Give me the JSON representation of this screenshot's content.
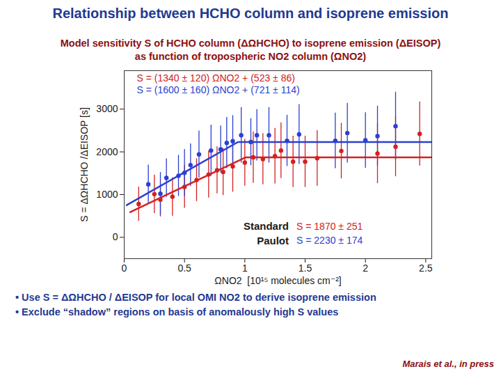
{
  "chart_data": {
    "type": "scatter",
    "title": "Relationship between HCHO column and isoprene emission",
    "subtitle": [
      "Model sensitivity S of HCHO column (ΔΩHCHO) to isoprene emission (ΔEISOP)",
      "as function of tropospheric NO2 column (ΩNO2)"
    ],
    "x_label": "ΩNO2  [10¹⁵ molecules cm⁻²]",
    "y_label": "S = ΔΩHCHO /ΔEISOP [s]",
    "xlim": [
      0,
      2.55
    ],
    "ylim": [
      -500,
      3900
    ],
    "xticks": [
      0,
      0.5,
      1,
      1.5,
      2,
      2.5
    ],
    "yticks": [
      0,
      1000,
      2000,
      3000
    ],
    "series": [
      {
        "name": "Standard",
        "color": "#d42020",
        "marker": "circle",
        "x": [
          0.12,
          0.25,
          0.3,
          0.4,
          0.5,
          0.6,
          0.7,
          0.77,
          0.82,
          0.9,
          1.0,
          1.07,
          1.15,
          1.25,
          1.3,
          1.4,
          1.5,
          1.6,
          1.8,
          2.1,
          2.25,
          2.45
        ],
        "values": [
          780,
          1010,
          880,
          950,
          1180,
          1340,
          1470,
          1570,
          1530,
          1660,
          1750,
          1870,
          1830,
          1900,
          2030,
          1770,
          1770,
          1850,
          2020,
          1960,
          2120,
          2420
        ],
        "errors": [
          400,
          450,
          400,
          450,
          500,
          500,
          550,
          550,
          550,
          600,
          550,
          600,
          600,
          650,
          650,
          600,
          600,
          650,
          650,
          700,
          700,
          750
        ],
        "fit": {
          "x": [
            0.05,
            1.005,
            2.55
          ],
          "values": [
            590,
            1870,
            1870
          ]
        },
        "fit_label": "S = (1340 ± 120) ΩNO2 + (523 ± 86)",
        "plateau_label": "S = 1870 ± 251"
      },
      {
        "name": "Paulot",
        "color": "#2b3fd0",
        "marker": "circle",
        "x": [
          0.2,
          0.3,
          0.35,
          0.45,
          0.5,
          0.55,
          0.62,
          0.72,
          0.8,
          0.85,
          0.9,
          0.97,
          1.05,
          1.1,
          1.2,
          1.35,
          1.45,
          1.75,
          1.85,
          2.0,
          2.1,
          2.25
        ],
        "values": [
          1240,
          1020,
          1390,
          1440,
          1510,
          1690,
          1940,
          2030,
          2060,
          2210,
          2250,
          2390,
          2230,
          2390,
          2390,
          2260,
          2410,
          2260,
          2440,
          2270,
          2370,
          2600
        ],
        "errors": [
          450,
          500,
          450,
          480,
          550,
          500,
          550,
          600,
          550,
          600,
          600,
          650,
          550,
          600,
          650,
          600,
          700,
          650,
          700,
          650,
          700,
          800
        ],
        "fit": {
          "x": [
            0.02,
            0.943,
            2.55
          ],
          "values": [
            753,
            2230,
            2230
          ]
        },
        "fit_label": "S = (1600 ± 160) ΩNO2 + (721 ± 114)",
        "plateau_label": "S = 2230 ± 174"
      }
    ],
    "bullets": [
      "Use S = ΔΩHCHO / ΔEISOP for local OMI NO2 to derive isoprene emission",
      "Exclude “shadow” regions on basis of anomalously high S values"
    ],
    "citation": "Marais et al., in press"
  }
}
